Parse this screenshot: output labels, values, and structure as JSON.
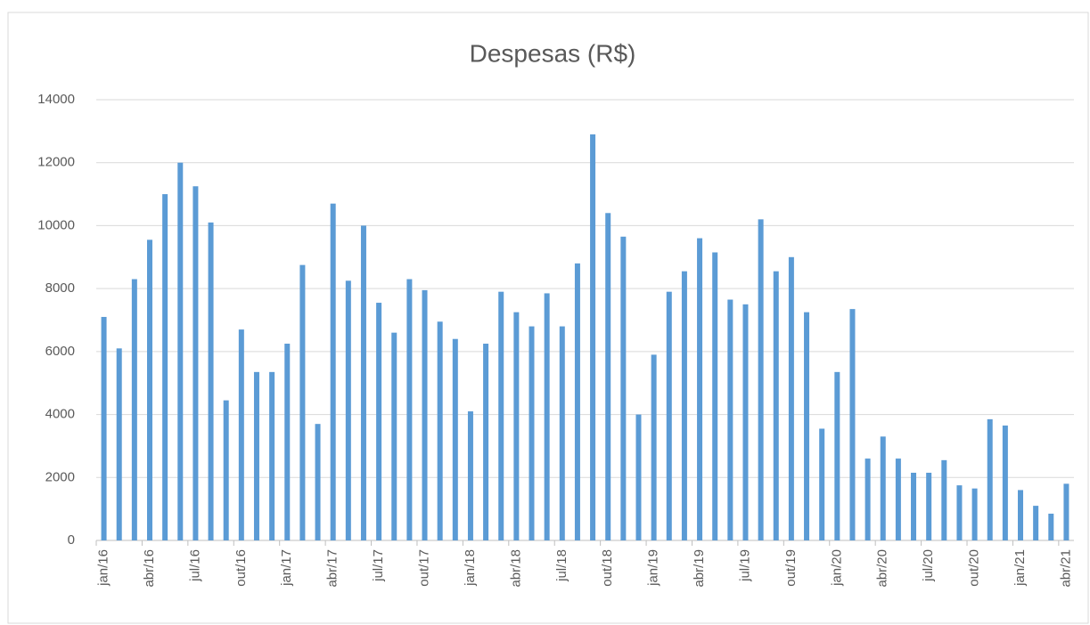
{
  "chart_data": {
    "type": "bar",
    "title": "Despesas (R$)",
    "categories": [
      "jan/16",
      null,
      null,
      "abr/16",
      null,
      null,
      "jul/16",
      null,
      null,
      "out/16",
      null,
      null,
      "jan/17",
      null,
      null,
      "abr/17",
      null,
      null,
      "jul/17",
      null,
      null,
      "out/17",
      null,
      null,
      "jan/18",
      null,
      null,
      "abr/18",
      null,
      null,
      "jul/18",
      null,
      null,
      "out/18",
      null,
      null,
      "jan/19",
      null,
      null,
      "abr/19",
      null,
      null,
      "jul/19",
      null,
      null,
      "out/19",
      null,
      null,
      "jan/20",
      null,
      null,
      "abr/20",
      null,
      null,
      "jul/20",
      null,
      null,
      "out/20",
      null,
      null,
      "jan/21",
      null,
      null,
      "abr/21"
    ],
    "values": [
      7100,
      6100,
      8300,
      9550,
      11000,
      12000,
      11250,
      10100,
      4450,
      6700,
      5350,
      5350,
      6250,
      8750,
      3700,
      10700,
      8250,
      10000,
      7550,
      6600,
      8300,
      7950,
      6950,
      6400,
      4100,
      6250,
      7900,
      7250,
      6800,
      7850,
      6800,
      8800,
      12900,
      10400,
      9650,
      4000,
      5900,
      7900,
      8550,
      9600,
      9150,
      7650,
      7500,
      10200,
      8550,
      9000,
      7250,
      3550,
      5350,
      7350,
      2600,
      3300,
      2600,
      2150,
      2150,
      2550,
      1750,
      1650,
      3850,
      3650,
      1600,
      1100,
      850,
      1800
    ],
    "color": "#5b9bd5",
    "ylim": [
      0,
      14000
    ],
    "yticks": [
      0,
      2000,
      4000,
      6000,
      8000,
      10000,
      12000,
      14000
    ],
    "grid": true
  }
}
